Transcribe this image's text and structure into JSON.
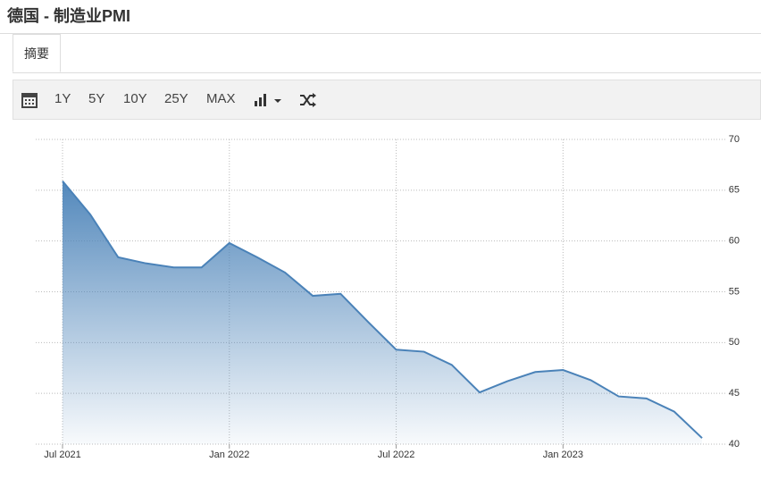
{
  "header": {
    "title": "德国 - 制造业PMI"
  },
  "tabs": [
    "摘要"
  ],
  "toolbar": [
    "1Y",
    "5Y",
    "10Y",
    "25Y",
    "MAX"
  ],
  "chart_data": {
    "type": "area",
    "categories": [
      "Jul 2021",
      null,
      null,
      null,
      null,
      null,
      "Jan 2022",
      null,
      null,
      null,
      null,
      null,
      "Jul 2022",
      null,
      null,
      null,
      null,
      null,
      "Jan 2023",
      null,
      null,
      null,
      null,
      null
    ],
    "values": [
      65.9,
      62.6,
      58.4,
      57.8,
      57.4,
      57.4,
      59.8,
      58.4,
      56.9,
      54.6,
      54.8,
      52.0,
      49.3,
      49.1,
      47.8,
      45.1,
      46.2,
      47.1,
      47.3,
      46.3,
      44.7,
      44.5,
      43.2,
      40.6
    ],
    "color": "#4a82b8",
    "ylim": [
      40,
      70
    ],
    "yticks": [
      40,
      45,
      50,
      55,
      60,
      65,
      70
    ],
    "grid": true
  }
}
